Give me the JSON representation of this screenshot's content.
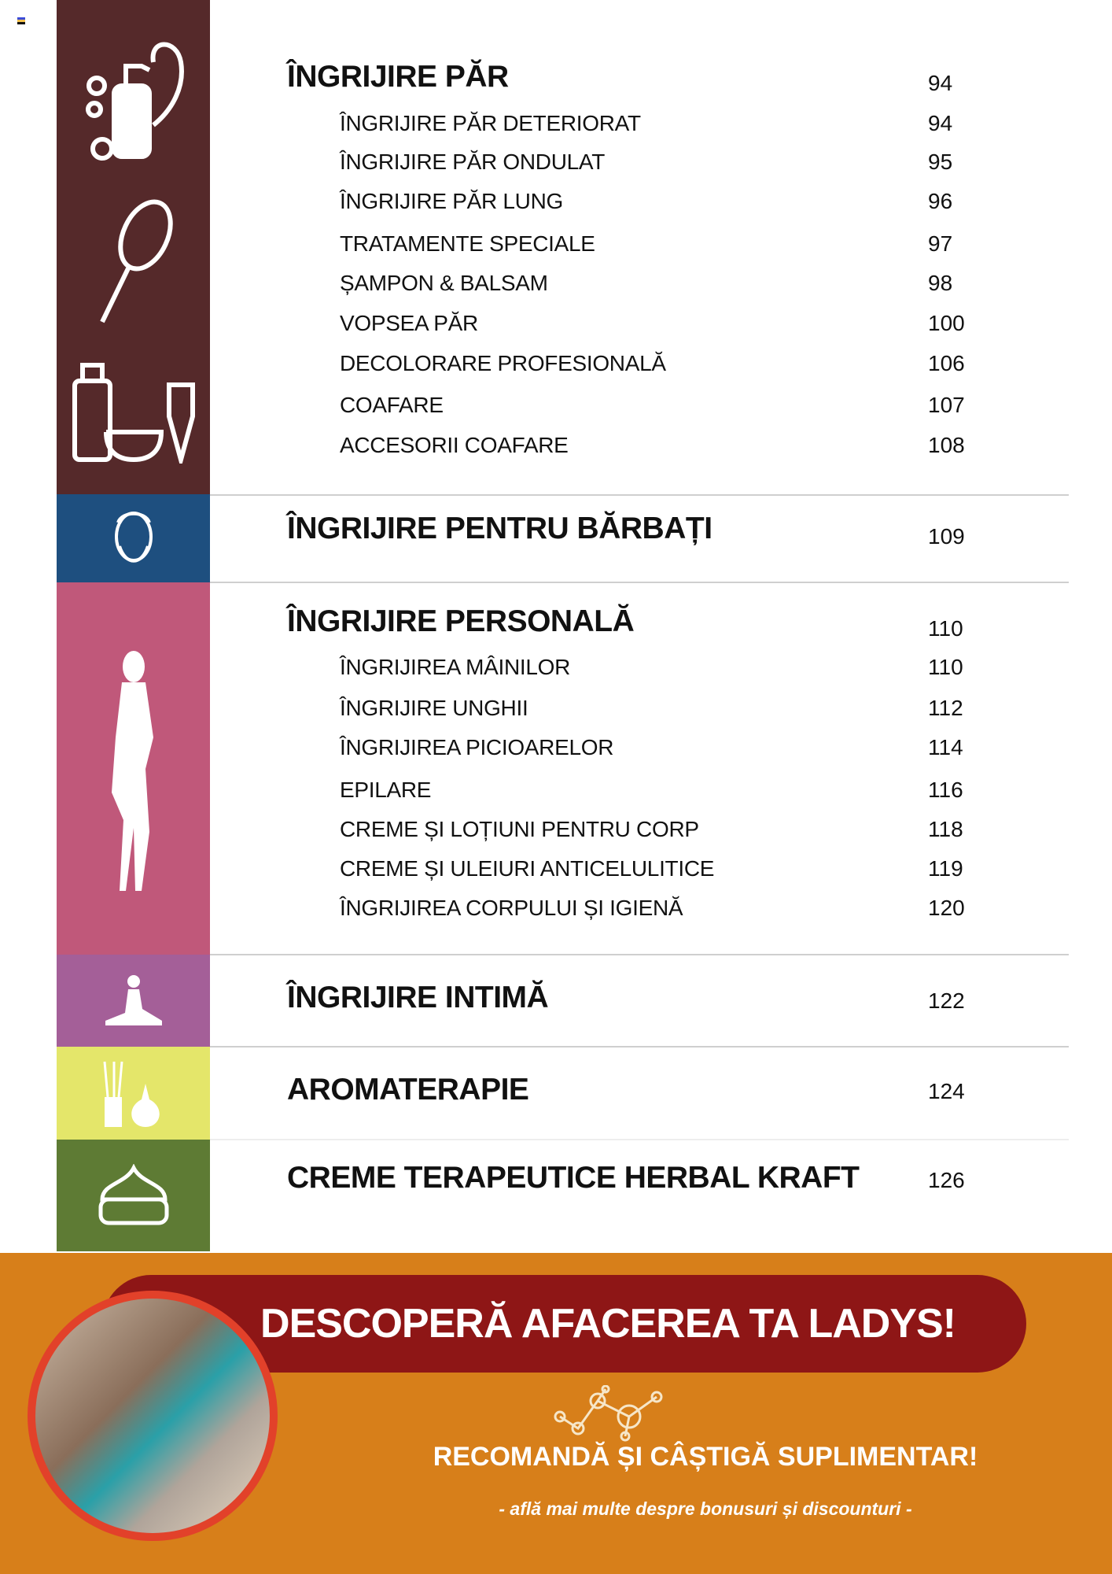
{
  "colors": {
    "hair": "#55292a",
    "men": "#1e4f7f",
    "personal": "#c0587a",
    "intimate": "#a45f98",
    "aroma": "#e4e66a",
    "herbal": "#5e7b34",
    "promo_bg": "#d77f1a",
    "promo_pill": "#8e1616"
  },
  "sections": [
    {
      "title": "ÎNGRIJIRE PĂR",
      "page": "94",
      "items": [
        {
          "label": "ÎNGRIJIRE PĂR DETERIORAT",
          "page": "94"
        },
        {
          "label": "ÎNGRIJIRE PĂR ONDULAT",
          "page": "95"
        },
        {
          "label": "ÎNGRIJIRE PĂR LUNG",
          "page": "96"
        },
        {
          "label": "TRATAMENTE SPECIALE",
          "page": "97"
        },
        {
          "label": "ȘAMPON & BALSAM",
          "page": "98"
        },
        {
          "label": "VOPSEA PĂR",
          "page": "100"
        },
        {
          "label": "DECOLORARE PROFESIONALĂ",
          "page": "106"
        },
        {
          "label": "COAFARE",
          "page": "107"
        },
        {
          "label": "ACCESORII COAFARE",
          "page": "108"
        }
      ]
    },
    {
      "title": "ÎNGRIJIRE PENTRU BĂRBAȚI",
      "page": "109"
    },
    {
      "title": "ÎNGRIJIRE PERSONALĂ",
      "page": "110",
      "items": [
        {
          "label": "ÎNGRIJIREA MÂINILOR",
          "page": "110"
        },
        {
          "label": "ÎNGRIJIRE UNGHII",
          "page": "112"
        },
        {
          "label": "ÎNGRIJIREA PICIOARELOR",
          "page": "114"
        },
        {
          "label": "EPILARE",
          "page": "116"
        },
        {
          "label": "CREME ȘI LOȚIUNI PENTRU CORP",
          "page": "118"
        },
        {
          "label": "CREME ȘI ULEIURI ANTICELULITICE",
          "page": "119"
        },
        {
          "label": "ÎNGRIJIREA CORPULUI ȘI IGIENĂ",
          "page": "120"
        }
      ]
    },
    {
      "title": "ÎNGRIJIRE INTIMĂ",
      "page": "122"
    },
    {
      "title": "AROMATERAPIE",
      "page": "124"
    },
    {
      "title": "CREME TERAPEUTICE HERBAL KRAFT",
      "page": "126"
    }
  ],
  "promo": {
    "headline": "DESCOPERĂ AFACEREA TA LADYS!",
    "subheadline": "RECOMANDĂ ȘI CÂȘTIGĂ SUPLIMENTAR!",
    "tagline": "- află mai multe despre bonusuri și discounturi -"
  }
}
